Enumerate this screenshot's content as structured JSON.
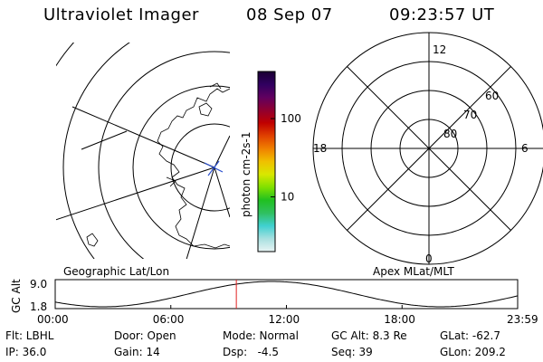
{
  "header": {
    "instrument": "Ultraviolet Imager",
    "date": "08 Sep 07",
    "time": "09:23:57 UT"
  },
  "colorbar": {
    "label": "photon cm-2s-1",
    "ticks": [
      "100",
      "10"
    ],
    "tick_values": [
      100,
      10
    ],
    "stops": [
      "#e8f4f4",
      "#a8e0e0",
      "#40d0d0",
      "#30c060",
      "#20c020",
      "#80e000",
      "#d8e800",
      "#f0c000",
      "#f08000",
      "#e04000",
      "#c00000",
      "#900030",
      "#600060",
      "#300060",
      "#1a0033"
    ]
  },
  "geo_panel": {
    "label": "Geographic Lat/Lon"
  },
  "polar_panel": {
    "label": "Apex MLat/MLT",
    "mlt_labels": {
      "top": "12",
      "bottom": "0",
      "left": "18",
      "right": "6"
    },
    "lat_labels": [
      "60",
      "70",
      "80"
    ]
  },
  "altitude_plot": {
    "ylabel": "GC Alt",
    "yticks": [
      "9.0",
      "1.8"
    ],
    "xticks": [
      "00:00",
      "06:00",
      "12:00",
      "18:00",
      "23:59"
    ],
    "current_time_hours": 9.4
  },
  "info": {
    "filter": "Flt: LBHL",
    "door": "Door: Open",
    "mode": "Mode: Normal",
    "gc_alt": "GC Alt: 8.3 Re",
    "glat": "GLat: -62.7",
    "ip": "IP: 36.0",
    "gain": "Gain: 14",
    "dsp": "Dsp:   -4.5",
    "seq": "Seq: 39",
    "glon": "GLon: 209.2"
  }
}
